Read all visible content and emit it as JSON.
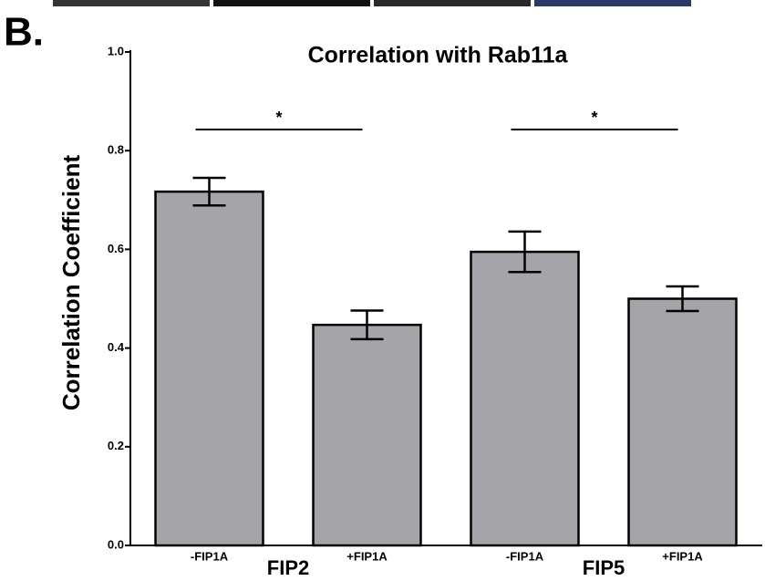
{
  "chart_data": {
    "type": "bar",
    "panel": "B.",
    "title": "Correlation with Rab11a",
    "ylabel": "Correlation Coefficient",
    "categories": [
      "-FIP1A",
      "+FIP1A",
      "-FIP1A",
      "+FIP1A"
    ],
    "groups": [
      "FIP2",
      "FIP5"
    ],
    "values": [
      0.717,
      0.447,
      0.595,
      0.5
    ],
    "errors": [
      0.028,
      0.029,
      0.041,
      0.025
    ],
    "color": "#a5a4a9",
    "annotations": [
      "*",
      "*"
    ],
    "ylim": [
      0,
      1
    ],
    "yticks": [
      {
        "value": 0,
        "label": "0.0"
      },
      0.2,
      0.4,
      0.6,
      0.8,
      {
        "value": 1,
        "label": "1.0"
      }
    ]
  }
}
